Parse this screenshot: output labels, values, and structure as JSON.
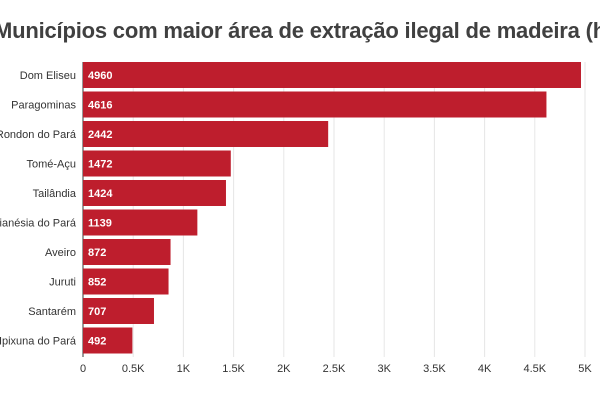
{
  "chart_data": {
    "type": "bar",
    "orientation": "horizontal",
    "title": "Municípios com maior área de extração ilegal de madeira (ha)",
    "categories": [
      "Dom Eliseu",
      "Paragominas",
      "Rondon do Pará",
      "Tomé-Açu",
      "Tailândia",
      "Goianésia do Pará",
      "Aveiro",
      "Juruti",
      "Santarém",
      "Ipixuna do Pará"
    ],
    "values": [
      4960,
      4616,
      2442,
      1472,
      1424,
      1139,
      872,
      852,
      707,
      492
    ],
    "value_labels": [
      "4960",
      "4616",
      "2442",
      "1472",
      "1424",
      "1139",
      "872",
      "852",
      "707",
      "492"
    ],
    "xlim": [
      0,
      5000
    ],
    "xticks": [
      0,
      500,
      1000,
      1500,
      2000,
      2500,
      3000,
      3500,
      4000,
      4500,
      5000
    ],
    "xtick_labels": [
      "0",
      "0.5K",
      "1K",
      "1.5K",
      "2K",
      "2.5K",
      "3K",
      "3.5K",
      "4K",
      "4.5K",
      "5K"
    ],
    "bar_color": "#be1e2d",
    "grid": true
  }
}
